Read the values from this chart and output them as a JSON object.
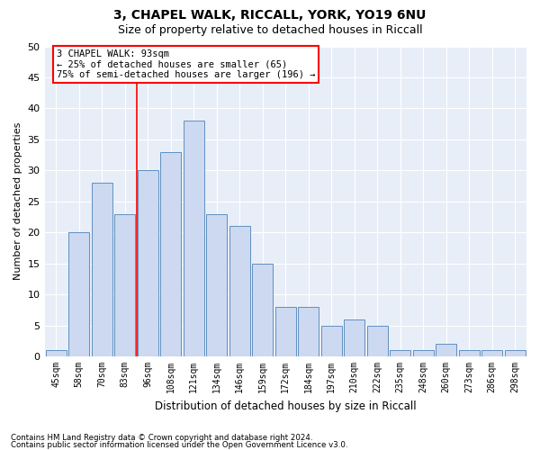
{
  "title": "3, CHAPEL WALK, RICCALL, YORK, YO19 6NU",
  "subtitle": "Size of property relative to detached houses in Riccall",
  "xlabel": "Distribution of detached houses by size in Riccall",
  "ylabel": "Number of detached properties",
  "categories": [
    "45sqm",
    "58sqm",
    "70sqm",
    "83sqm",
    "96sqm",
    "108sqm",
    "121sqm",
    "134sqm",
    "146sqm",
    "159sqm",
    "172sqm",
    "184sqm",
    "197sqm",
    "210sqm",
    "222sqm",
    "235sqm",
    "248sqm",
    "260sqm",
    "273sqm",
    "286sqm",
    "298sqm"
  ],
  "values": [
    1,
    20,
    28,
    23,
    30,
    33,
    38,
    23,
    21,
    15,
    8,
    8,
    5,
    6,
    5,
    1,
    1,
    2,
    1,
    1,
    1
  ],
  "bar_color": "#ccd9f0",
  "bar_edge_color": "#6090c0",
  "ylim": [
    0,
    50
  ],
  "yticks": [
    0,
    5,
    10,
    15,
    20,
    25,
    30,
    35,
    40,
    45,
    50
  ],
  "vline_x": 3.5,
  "annotation_box_text": "3 CHAPEL WALK: 93sqm\n← 25% of detached houses are smaller (65)\n75% of semi-detached houses are larger (196) →",
  "footer_line1": "Contains HM Land Registry data © Crown copyright and database right 2024.",
  "footer_line2": "Contains public sector information licensed under the Open Government Licence v3.0.",
  "bg_color": "#ffffff",
  "plot_bg_color": "#e8eef8",
  "title_fontsize": 10,
  "subtitle_fontsize": 9,
  "bar_width": 0.9
}
